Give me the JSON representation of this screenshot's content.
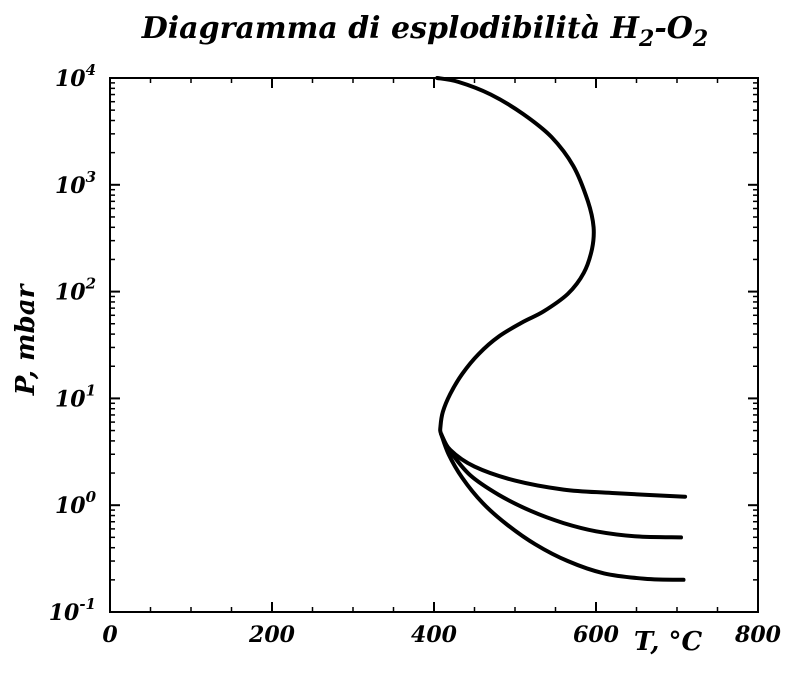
{
  "chart_data": {
    "type": "line",
    "title": "Diagramma di esplodibilità H",
    "title_sub1": "2",
    "title_mid": "-O",
    "title_sub2": "2",
    "xlabel": "T, °C",
    "ylabel": "P, mbar",
    "xlim": [
      0,
      800
    ],
    "ylim": [
      0.1,
      10000
    ],
    "yscale": "log",
    "grid": false,
    "legend": "none",
    "x_ticks": [
      0,
      200,
      400,
      600,
      800
    ],
    "x_tick_labels": [
      "0",
      "200",
      "400",
      "600",
      "800"
    ],
    "y_ticks": [
      {
        "value": 10000,
        "base": "10",
        "exp": "4"
      },
      {
        "value": 1000,
        "base": "10",
        "exp": "3"
      },
      {
        "value": 100,
        "base": "10",
        "exp": "2"
      },
      {
        "value": 10,
        "base": "10",
        "exp": "1"
      },
      {
        "value": 1,
        "base": "10",
        "exp": "0"
      },
      {
        "value": 0.1,
        "base": "10",
        "exp": "-1"
      }
    ],
    "series": [
      {
        "values": [
          [
            404,
            10000
          ],
          [
            430,
            9200
          ],
          [
            470,
            7000
          ],
          [
            510,
            4600
          ],
          [
            545,
            2800
          ],
          [
            572,
            1500
          ],
          [
            590,
            700
          ],
          [
            597,
            400
          ],
          [
            595,
            250
          ],
          [
            585,
            150
          ],
          [
            565,
            95
          ],
          [
            535,
            65
          ],
          [
            510,
            52
          ],
          [
            480,
            38
          ],
          [
            455,
            26
          ],
          [
            435,
            17
          ],
          [
            420,
            11
          ],
          [
            411,
            7.5
          ],
          [
            408,
            5.5
          ],
          [
            409,
            4.6
          ],
          [
            420,
            3.3
          ],
          [
            450,
            2.3
          ],
          [
            500,
            1.7
          ],
          [
            560,
            1.4
          ],
          [
            620,
            1.3
          ],
          [
            710,
            1.2
          ]
        ]
      },
      {
        "values": [
          [
            409,
            4.6
          ],
          [
            420,
            3.2
          ],
          [
            445,
            1.9
          ],
          [
            480,
            1.25
          ],
          [
            520,
            0.88
          ],
          [
            560,
            0.68
          ],
          [
            600,
            0.57
          ],
          [
            650,
            0.51
          ],
          [
            705,
            0.5
          ]
        ]
      },
      {
        "values": [
          [
            409,
            4.6
          ],
          [
            418,
            3.0
          ],
          [
            435,
            1.8
          ],
          [
            460,
            1.05
          ],
          [
            490,
            0.66
          ],
          [
            525,
            0.43
          ],
          [
            565,
            0.3
          ],
          [
            610,
            0.23
          ],
          [
            660,
            0.205
          ],
          [
            708,
            0.2
          ]
        ]
      }
    ],
    "colors": {
      "line": "#000000",
      "axis": "#000000",
      "background": "#ffffff"
    }
  }
}
